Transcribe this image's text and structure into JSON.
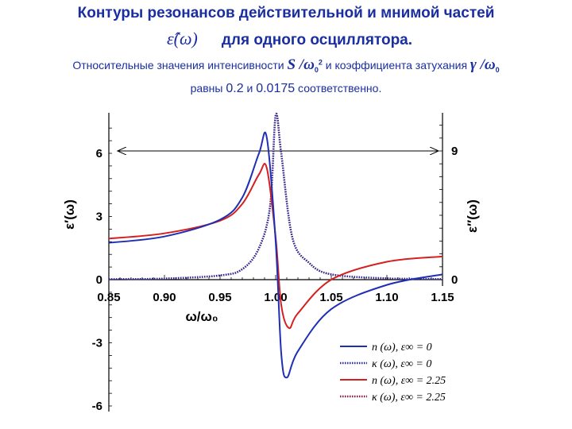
{
  "title": {
    "line1": "Контуры резонансов действительной и мнимой частей",
    "symbol": "ε̂(ω)",
    "line2": "для одного осциллятора.",
    "sub_a": "Относительные значения интенсивности",
    "sub_S": "S /ω",
    "sub_0a": "0",
    "sub_2": "2",
    "sub_b": "и коэффициента затухания",
    "sub_gamma": "γ /ω",
    "sub_0b": "0",
    "sub2_a": "равны",
    "sub2_v1": "0.2",
    "sub2_and": "и",
    "sub2_v2": "0.0175",
    "sub2_b": "соответственно."
  },
  "chart_data": {
    "type": "line",
    "params": {
      "S_over_w0_sq": 0.2,
      "gamma_over_w0": 0.0175
    },
    "xlabel": "ω/ω₀",
    "ylabel_left": "ε′(ω)",
    "ylabel_right": "ε″(ω)",
    "xlim": [
      0.85,
      1.15
    ],
    "ylim_left": [
      -6,
      8
    ],
    "ylim_right": [
      0,
      12
    ],
    "x_ticks": [
      "0.85",
      "0.90",
      "0.95",
      "1.00",
      "1.05",
      "1.10",
      "1.15"
    ],
    "y_ticks_left": [
      "-6",
      "-3",
      "0",
      "3",
      "6"
    ],
    "y_ticks_right": [
      "0",
      "9"
    ],
    "series": [
      {
        "name": "n (ω), ε∞ = 0",
        "color": "#1e2fb4",
        "style": "solid",
        "x": [
          0.85,
          0.9,
          0.95,
          0.97,
          0.985,
          0.992,
          1.0,
          1.005,
          1.01,
          1.02,
          1.05,
          1.1,
          1.15
        ],
        "y": [
          1.75,
          2.05,
          2.85,
          3.9,
          6.0,
          6.75,
          1.8,
          -3.5,
          -4.65,
          -3.4,
          -1.4,
          -0.25,
          0.25
        ]
      },
      {
        "name": "κ (ω), ε∞ = 0",
        "color": "#2a2a9a",
        "style": "dotted",
        "x": [
          0.85,
          0.9,
          0.95,
          0.97,
          0.985,
          0.995,
          1.0,
          1.005,
          1.015,
          1.03,
          1.05,
          1.1,
          1.15
        ],
        "y": [
          0.02,
          0.05,
          0.2,
          0.5,
          1.5,
          3.5,
          7.8,
          6.0,
          2.0,
          0.8,
          0.25,
          0.06,
          0.03
        ]
      },
      {
        "name": "n (ω), ε∞ = 2.25",
        "color": "#d42020",
        "style": "solid",
        "x": [
          0.85,
          0.9,
          0.95,
          0.97,
          0.985,
          0.992,
          1.0,
          1.005,
          1.012,
          1.02,
          1.05,
          1.1,
          1.15
        ],
        "y": [
          1.95,
          2.2,
          2.8,
          3.6,
          5.0,
          5.3,
          2.0,
          -1.2,
          -2.3,
          -1.6,
          0.0,
          0.85,
          1.1
        ]
      },
      {
        "name": "κ (ω), ε∞ = 2.25",
        "color": "#8a1a3a",
        "style": "dotted",
        "x": [
          0.85,
          0.9,
          0.95,
          0.97,
          0.985,
          0.995,
          1.0,
          1.005,
          1.015,
          1.03,
          1.05,
          1.1,
          1.15
        ],
        "y": [
          0.02,
          0.05,
          0.2,
          0.5,
          1.5,
          3.5,
          7.8,
          6.0,
          2.0,
          0.8,
          0.25,
          0.06,
          0.03
        ]
      }
    ],
    "legend_placement": "bottom-right",
    "grid": false
  }
}
